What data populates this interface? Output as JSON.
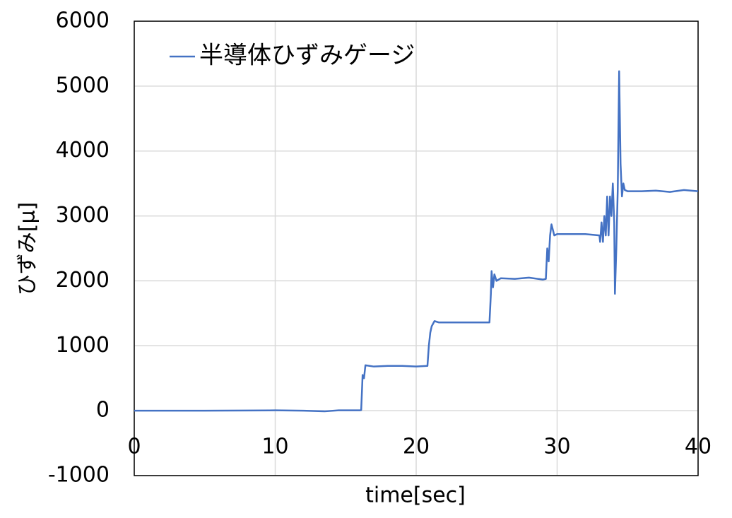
{
  "chart_data": {
    "type": "line",
    "xlabel": "time[sec]",
    "ylabel": "ひずみ[μ]",
    "x": [
      0,
      5,
      10,
      12,
      13.5,
      14.5,
      16,
      16.1,
      16.2,
      16.3,
      16.4,
      17,
      18,
      19,
      20,
      20.8,
      20.9,
      21,
      21.1,
      21.3,
      21.6,
      23,
      25,
      25.2,
      25.3,
      25.35,
      25.45,
      25.55,
      25.7,
      26,
      27,
      28,
      29,
      29.2,
      29.3,
      29.4,
      29.5,
      29.6,
      29.8,
      30,
      31,
      32,
      33,
      33.05,
      33.15,
      33.25,
      33.35,
      33.45,
      33.55,
      33.65,
      33.75,
      33.85,
      33.95,
      34.05,
      34.1,
      34.2,
      34.3,
      34.4,
      34.5,
      34.6,
      34.7,
      34.8,
      35,
      36,
      37,
      38,
      39,
      40
    ],
    "series": [
      {
        "name": "半導体ひずみゲージ",
        "color": "#4472c4",
        "values": [
          0,
          0,
          5,
          0,
          -10,
          5,
          5,
          10,
          550,
          500,
          700,
          680,
          690,
          690,
          680,
          690,
          1000,
          1200,
          1300,
          1380,
          1360,
          1360,
          1360,
          1360,
          1800,
          2150,
          1900,
          2100,
          2000,
          2040,
          2030,
          2050,
          2020,
          2030,
          2500,
          2300,
          2700,
          2870,
          2700,
          2720,
          2720,
          2720,
          2700,
          2600,
          2900,
          2600,
          3000,
          2700,
          3300,
          2700,
          3300,
          3000,
          3500,
          2900,
          1800,
          2500,
          3400,
          5230,
          3800,
          3300,
          3500,
          3400,
          3380,
          3380,
          3390,
          3370,
          3400,
          3380
        ]
      }
    ],
    "xlim": [
      0,
      40
    ],
    "xticks": [
      0,
      10,
      20,
      30,
      40
    ],
    "ylim": [
      -1000,
      6000
    ],
    "yticks": [
      -1000,
      0,
      1000,
      2000,
      3000,
      4000,
      5000,
      6000
    ],
    "grid": true,
    "legend": "top-left"
  }
}
